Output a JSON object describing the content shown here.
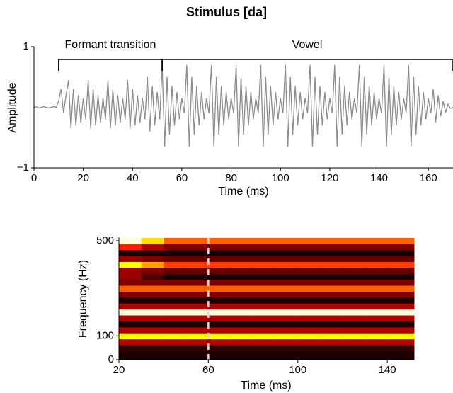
{
  "chart_data": [
    {
      "type": "line",
      "title": "Stimulus [da]",
      "x_label": "Time (ms)",
      "y_label": "Amplitude",
      "xlim": [
        0,
        170
      ],
      "ylim": [
        -1,
        1
      ],
      "xticks": [
        0,
        20,
        40,
        60,
        80,
        100,
        120,
        140,
        160
      ],
      "yticks": [
        {
          "value": -1,
          "label": "−1"
        },
        1
      ],
      "color": "#8c8c8c",
      "annotations": [
        {
          "text": "Formant transition",
          "x": [
            10,
            52
          ]
        },
        {
          "text": "Vowel",
          "x": [
            52,
            170
          ]
        }
      ],
      "x": [
        0,
        1,
        2,
        3,
        4,
        5,
        6,
        7,
        8,
        9,
        10,
        11,
        12,
        13,
        14,
        15,
        16,
        17,
        18,
        19,
        20,
        21,
        22,
        23,
        24,
        25,
        26,
        27,
        28,
        29,
        30,
        31,
        32,
        33,
        34,
        35,
        36,
        37,
        38,
        39,
        40,
        41,
        42,
        43,
        44,
        45,
        46,
        47,
        48,
        49,
        50,
        51,
        52,
        53,
        54,
        55,
        56,
        57,
        58,
        59,
        60,
        61,
        62,
        63,
        64,
        65,
        66,
        67,
        68,
        69,
        70,
        71,
        72,
        73,
        74,
        75,
        76,
        77,
        78,
        79,
        80,
        81,
        82,
        83,
        84,
        85,
        86,
        87,
        88,
        89,
        90,
        91,
        92,
        93,
        94,
        95,
        96,
        97,
        98,
        99,
        100,
        101,
        102,
        103,
        104,
        105,
        106,
        107,
        108,
        109,
        110,
        111,
        112,
        113,
        114,
        115,
        116,
        117,
        118,
        119,
        120,
        121,
        122,
        123,
        124,
        125,
        126,
        127,
        128,
        129,
        130,
        131,
        132,
        133,
        134,
        135,
        136,
        137,
        138,
        139,
        140,
        141,
        142,
        143,
        144,
        145,
        146,
        147,
        148,
        149,
        150,
        151,
        152,
        153,
        154,
        155,
        156,
        157,
        158,
        159,
        160,
        161,
        162,
        163,
        164,
        165,
        166,
        167,
        168,
        169,
        170
      ],
      "values": [
        0,
        0.01,
        -0.01,
        0,
        0.01,
        0,
        -0.01,
        0,
        0.01,
        0,
        0.1,
        0.3,
        -0.1,
        0.2,
        0.45,
        -0.35,
        0.3,
        -0.3,
        0.2,
        -0.25,
        0.15,
        -0.2,
        0.45,
        -0.35,
        0.3,
        -0.3,
        0.2,
        -0.25,
        0.15,
        -0.2,
        0.45,
        -0.35,
        0.3,
        -0.3,
        0.2,
        -0.25,
        0.15,
        -0.2,
        0.45,
        -0.35,
        0.3,
        -0.3,
        0.2,
        -0.25,
        0.15,
        -0.2,
        0.5,
        -0.4,
        0.35,
        -0.3,
        0.25,
        -0.2,
        0.7,
        -0.65,
        0.5,
        -0.45,
        0.35,
        -0.3,
        0.25,
        -0.2,
        0.15,
        -0.1,
        0.7,
        -0.65,
        0.5,
        -0.45,
        0.35,
        -0.3,
        0.25,
        -0.2,
        0.15,
        -0.1,
        0.7,
        -0.65,
        0.5,
        -0.45,
        0.35,
        -0.3,
        0.25,
        -0.2,
        0.15,
        -0.1,
        0.7,
        -0.65,
        0.5,
        -0.45,
        0.35,
        -0.3,
        0.25,
        -0.2,
        0.15,
        -0.1,
        0.7,
        -0.65,
        0.5,
        -0.45,
        0.35,
        -0.3,
        0.25,
        -0.2,
        0.15,
        -0.1,
        0.7,
        -0.65,
        0.5,
        -0.45,
        0.35,
        -0.3,
        0.25,
        -0.2,
        0.15,
        -0.1,
        0.7,
        -0.65,
        0.5,
        -0.45,
        0.35,
        -0.3,
        0.25,
        -0.2,
        0.15,
        -0.1,
        0.7,
        -0.65,
        0.5,
        -0.45,
        0.35,
        -0.3,
        0.25,
        -0.2,
        0.15,
        -0.1,
        0.7,
        -0.65,
        0.5,
        -0.45,
        0.35,
        -0.3,
        0.25,
        -0.2,
        0.15,
        -0.1,
        0.7,
        -0.65,
        0.5,
        -0.45,
        0.35,
        -0.3,
        0.25,
        -0.2,
        0.15,
        -0.1,
        0.7,
        -0.65,
        0.5,
        -0.45,
        0.35,
        -0.3,
        0.25,
        -0.2,
        0.15,
        -0.1,
        0.3,
        -0.25,
        0.2,
        -0.15,
        0.1,
        -0.08,
        0.05,
        -0.02,
        0
      ]
    },
    {
      "type": "heatmap",
      "x_label": "Time (ms)",
      "y_label": "Frequency (Hz)",
      "colormap": "hot",
      "xlim": [
        20,
        152
      ],
      "ylim": [
        0,
        515
      ],
      "xticks": [
        20,
        60,
        100,
        140
      ],
      "yticks": [
        0,
        100,
        500
      ],
      "marker_x": 60,
      "x": [
        20,
        30,
        40,
        50,
        60,
        70,
        80,
        90,
        100,
        110,
        120,
        130,
        140,
        150
      ],
      "y": [
        0,
        25,
        50,
        75,
        100,
        125,
        150,
        175,
        200,
        225,
        250,
        275,
        300,
        325,
        350,
        375,
        400,
        425,
        450,
        475,
        500
      ],
      "z": [
        [
          0.05,
          0.05,
          0.05,
          0.05,
          0.05,
          0.05,
          0.05,
          0.05,
          0.05,
          0.05,
          0.05,
          0.05,
          0.05,
          0.05
        ],
        [
          0.05,
          0.05,
          0.05,
          0.05,
          0.05,
          0.05,
          0.05,
          0.05,
          0.05,
          0.05,
          0.05,
          0.05,
          0.05,
          0.05
        ],
        [
          0.1,
          0.1,
          0.1,
          0.1,
          0.1,
          0.1,
          0.1,
          0.1,
          0.1,
          0.1,
          0.1,
          0.1,
          0.1,
          0.1
        ],
        [
          0.35,
          0.35,
          0.35,
          0.35,
          0.35,
          0.35,
          0.35,
          0.35,
          0.35,
          0.35,
          0.35,
          0.35,
          0.35,
          0.35
        ],
        [
          0.85,
          0.85,
          0.85,
          0.85,
          0.85,
          0.85,
          0.85,
          0.85,
          0.85,
          0.85,
          0.85,
          0.85,
          0.85,
          0.85
        ],
        [
          0.35,
          0.35,
          0.35,
          0.35,
          0.35,
          0.35,
          0.35,
          0.35,
          0.35,
          0.35,
          0.35,
          0.35,
          0.35,
          0.35
        ],
        [
          0.05,
          0.05,
          0.05,
          0.05,
          0.05,
          0.05,
          0.05,
          0.05,
          0.05,
          0.05,
          0.05,
          0.05,
          0.05,
          0.05
        ],
        [
          0.35,
          0.35,
          0.35,
          0.35,
          0.35,
          0.35,
          0.35,
          0.35,
          0.35,
          0.35,
          0.35,
          0.35,
          0.35,
          0.35
        ],
        [
          1,
          1,
          1,
          1,
          1,
          1,
          1,
          1,
          1,
          1,
          1,
          1,
          1,
          1
        ],
        [
          0.35,
          0.35,
          0.35,
          0.35,
          0.35,
          0.35,
          0.35,
          0.35,
          0.35,
          0.35,
          0.35,
          0.35,
          0.35,
          0.35
        ],
        [
          0.05,
          0.05,
          0.05,
          0.05,
          0.05,
          0.05,
          0.05,
          0.05,
          0.05,
          0.05,
          0.05,
          0.05,
          0.05,
          0.05
        ],
        [
          0.25,
          0.25,
          0.25,
          0.25,
          0.25,
          0.25,
          0.25,
          0.25,
          0.25,
          0.25,
          0.25,
          0.25,
          0.25,
          0.25
        ],
        [
          0.6,
          0.6,
          0.6,
          0.6,
          0.6,
          0.6,
          0.6,
          0.6,
          0.6,
          0.6,
          0.6,
          0.6,
          0.6,
          0.6
        ],
        [
          0.25,
          0.25,
          0.25,
          0.25,
          0.25,
          0.25,
          0.25,
          0.25,
          0.25,
          0.25,
          0.25,
          0.25,
          0.25,
          0.25
        ],
        [
          0.3,
          0.15,
          0.05,
          0.05,
          0.05,
          0.05,
          0.05,
          0.05,
          0.05,
          0.05,
          0.05,
          0.05,
          0.05,
          0.05
        ],
        [
          0.3,
          0.25,
          0.2,
          0.2,
          0.2,
          0.2,
          0.2,
          0.2,
          0.2,
          0.2,
          0.2,
          0.2,
          0.2,
          0.2
        ],
        [
          0.85,
          0.7,
          0.55,
          0.55,
          0.55,
          0.55,
          0.55,
          0.55,
          0.55,
          0.55,
          0.55,
          0.55,
          0.55,
          0.55
        ],
        [
          0.3,
          0.25,
          0.2,
          0.2,
          0.2,
          0.2,
          0.2,
          0.2,
          0.2,
          0.2,
          0.2,
          0.2,
          0.2,
          0.2
        ],
        [
          0.05,
          0.05,
          0.05,
          0.05,
          0.05,
          0.05,
          0.05,
          0.05,
          0.05,
          0.05,
          0.05,
          0.05,
          0.05,
          0.05
        ],
        [
          0.5,
          0.35,
          0.25,
          0.25,
          0.25,
          0.25,
          0.25,
          0.25,
          0.25,
          0.25,
          0.25,
          0.25,
          0.25,
          0.25
        ],
        [
          1,
          0.8,
          0.6,
          0.6,
          0.6,
          0.6,
          0.6,
          0.6,
          0.6,
          0.6,
          0.6,
          0.6,
          0.6,
          0.6
        ]
      ]
    }
  ]
}
